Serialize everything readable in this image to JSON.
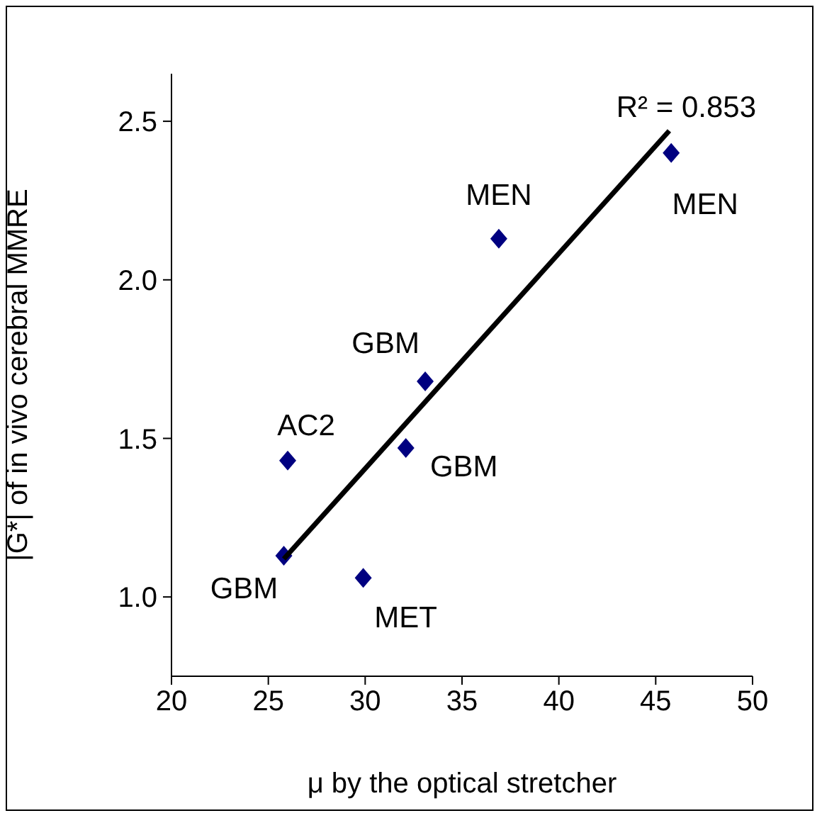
{
  "chart_data": {
    "type": "scatter",
    "xlabel": "μ by the optical stretcher",
    "ylabel": "|G*| of in vivo cerebral MMRE",
    "xlim": [
      20,
      50
    ],
    "xticks": [
      20,
      25,
      30,
      35,
      40,
      45,
      50
    ],
    "ylim": [
      0.75,
      2.65
    ],
    "yticks": [
      {
        "value": 1,
        "label": "1.0"
      },
      {
        "value": 1.5,
        "label": "1.5"
      },
      {
        "value": 2,
        "label": "2.0"
      },
      {
        "value": 2.5,
        "label": "2.5"
      }
    ],
    "grid": false,
    "legend": false,
    "series": [
      {
        "marker": "diamond",
        "color": "#000080",
        "x": [
          25.8,
          29.9,
          26.0,
          32.1,
          33.1,
          36.9,
          45.8
        ],
        "values": [
          1.13,
          1.06,
          1.43,
          1.47,
          1.68,
          2.13,
          2.4
        ]
      },
      {
        "type": "line",
        "color": "#000000",
        "x": [
          25.8,
          45.7
        ],
        "values": [
          1.12,
          2.47
        ]
      }
    ],
    "annotations": [
      {
        "text": "GBM",
        "x": 25.8,
        "y": 1.13
      },
      {
        "text": "MET",
        "x": 29.9,
        "y": 1.06
      },
      {
        "text": "AC2",
        "x": 26.0,
        "y": 1.43
      },
      {
        "text": "GBM",
        "x": 32.1,
        "y": 1.47
      },
      {
        "text": "GBM",
        "x": 33.1,
        "y": 1.68
      },
      {
        "text": "MEN",
        "x": 36.9,
        "y": 2.13
      },
      {
        "text": "MEN",
        "x": 45.8,
        "y": 2.4
      },
      {
        "text": "R² = 0.853",
        "x": 45.7,
        "y": 2.47
      }
    ]
  }
}
